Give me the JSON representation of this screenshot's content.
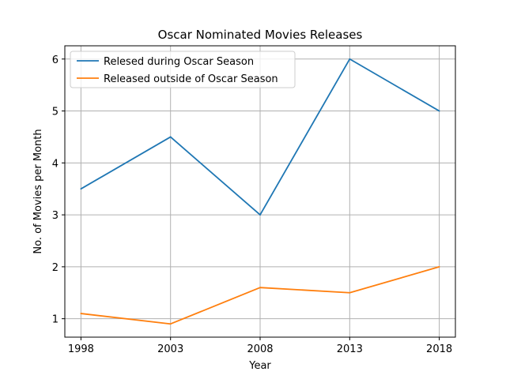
{
  "chart_data": {
    "type": "line",
    "title": "Oscar Nominated Movies Releases",
    "xlabel": "Year",
    "ylabel": "No. of Movies per Month",
    "x": [
      1998,
      2003,
      2008,
      2013,
      2018
    ],
    "x_tick_labels": [
      "1998",
      "2003",
      "2008",
      "2013",
      "2018"
    ],
    "y_ticks": [
      1,
      2,
      3,
      4,
      5,
      6
    ],
    "y_tick_labels": [
      "1",
      "2",
      "3",
      "4",
      "5",
      "6"
    ],
    "xlim": [
      1997.1,
      2018.9
    ],
    "ylim": [
      0.645,
      6.255
    ],
    "grid": true,
    "legend_position": "upper-left",
    "series": [
      {
        "name": "Relesed during Oscar Season",
        "color": "#1f77b4",
        "values": [
          3.5,
          4.5,
          3.0,
          6.0,
          5.0
        ]
      },
      {
        "name": "Released outside of Oscar Season",
        "color": "#ff7f0e",
        "values": [
          1.1,
          0.9,
          1.6,
          1.5,
          2.0
        ]
      }
    ]
  }
}
